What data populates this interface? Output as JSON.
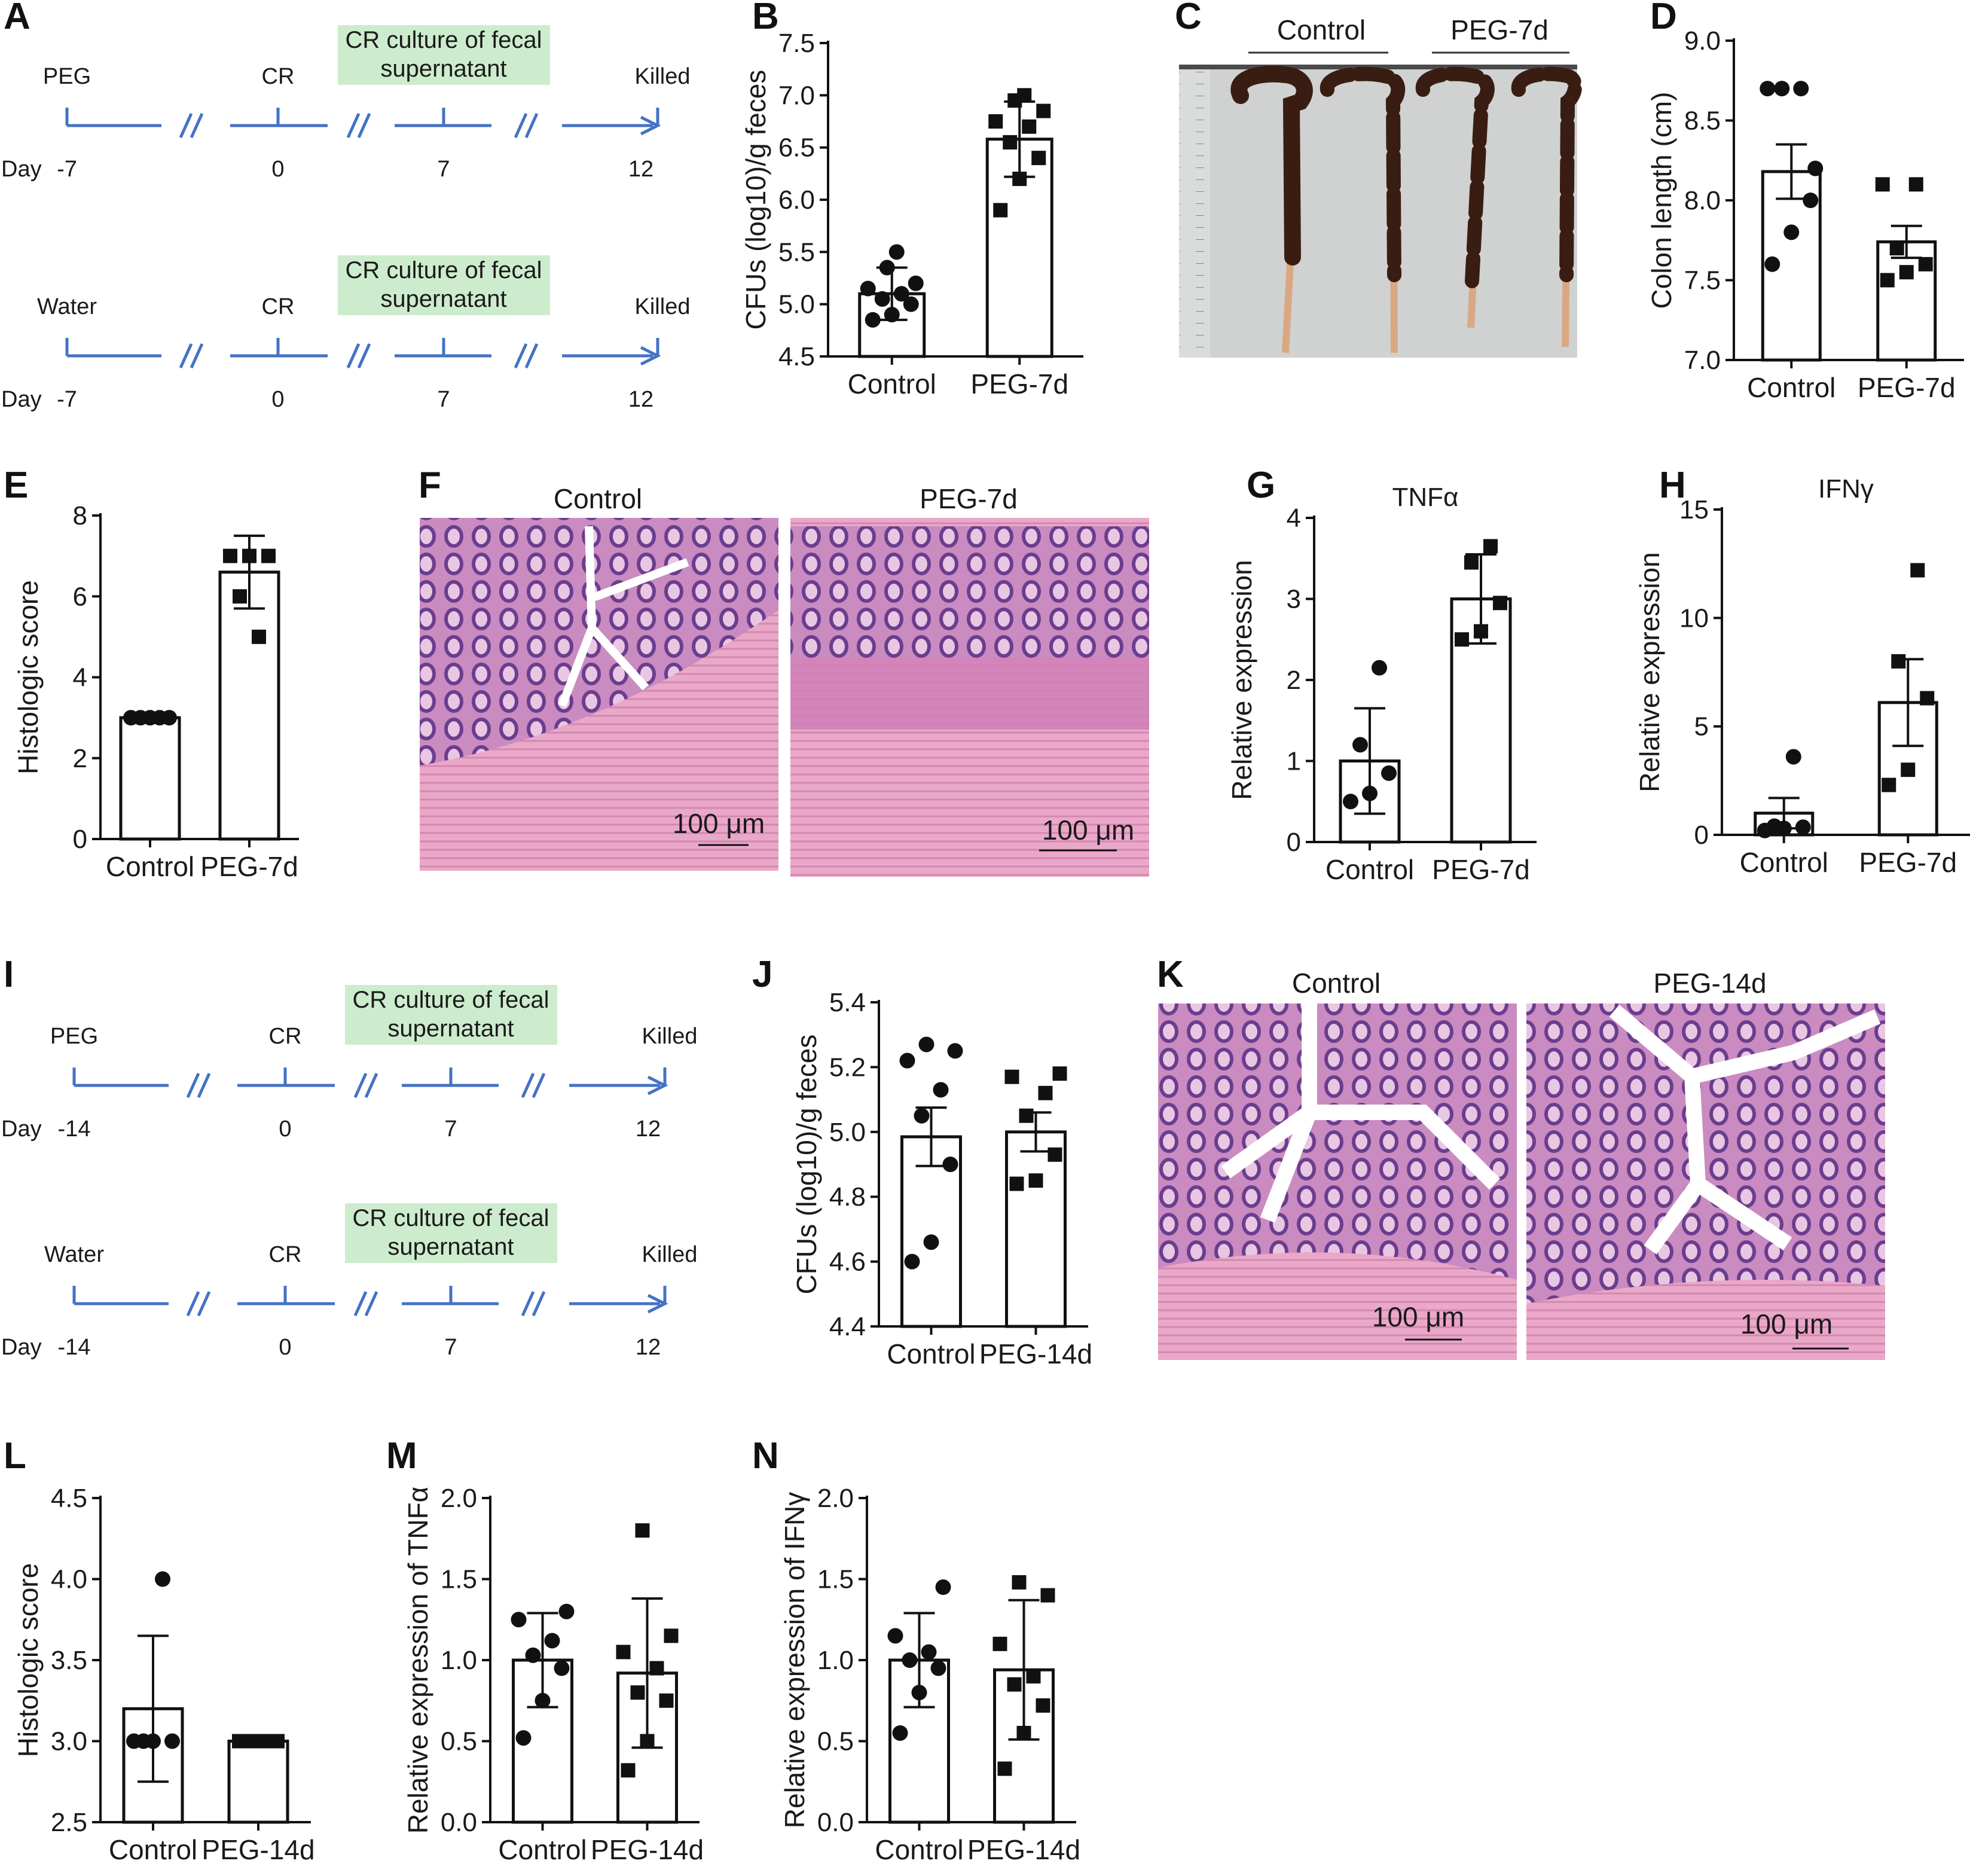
{
  "panel_letters": [
    "A",
    "B",
    "C",
    "D",
    "E",
    "F",
    "G",
    "H",
    "I",
    "J",
    "K",
    "L",
    "M",
    "N"
  ],
  "timelines": {
    "A_top": {
      "group": "PEG",
      "cr": "CR",
      "box": [
        "CR culture of fecal",
        "supernatant"
      ],
      "end": "Killed",
      "day_label": "Day",
      "days": [
        "-7",
        "0",
        "7",
        "12"
      ]
    },
    "A_bottom": {
      "group": "Water",
      "cr": "CR",
      "box": [
        "CR culture of fecal",
        "supernatant"
      ],
      "end": "Killed",
      "day_label": "Day",
      "days": [
        "-7",
        "0",
        "7",
        "12"
      ]
    },
    "I_top": {
      "group": "PEG",
      "cr": "CR",
      "box": [
        "CR culture of fecal",
        "supernatant"
      ],
      "end": "Killed",
      "day_label": "Day",
      "days": [
        "-14",
        "0",
        "7",
        "12"
      ]
    },
    "I_bottom": {
      "group": "Water",
      "cr": "CR",
      "box": [
        "CR culture of fecal",
        "supernatant"
      ],
      "end": "Killed",
      "day_label": "Day",
      "days": [
        "-14",
        "0",
        "7",
        "12"
      ]
    }
  },
  "images": {
    "C": {
      "labels": [
        "Control",
        "PEG-7d"
      ]
    },
    "F": {
      "labels": [
        "Control",
        "PEG-7d"
      ],
      "scale": "100 μm"
    },
    "K": {
      "labels": [
        "Control",
        "PEG-14d"
      ],
      "scale": "100 μm"
    }
  },
  "colors": {
    "timeline": "#4472c4",
    "box": "#cdeccd",
    "bar_edge": "#111111",
    "point": "#111111",
    "he_purple": "#8a4fa6",
    "he_pink": "#e6a3c6"
  },
  "chart_data": [
    {
      "id": "B",
      "type": "bar",
      "title": "",
      "ylabel": "CFUs (log10)/g feces",
      "ylim": [
        4.5,
        7.5
      ],
      "yticks": [
        "4.5",
        "5.0",
        "5.5",
        "6.0",
        "6.5",
        "7.0",
        "7.5"
      ],
      "categories": [
        "Control",
        "PEG-7d"
      ],
      "values": [
        5.1,
        6.58
      ],
      "errors": [
        0.25,
        0.36
      ],
      "points": [
        [
          4.85,
          4.9,
          5.0,
          5.05,
          5.1,
          5.15,
          5.2,
          5.35,
          5.5
        ],
        [
          5.9,
          6.2,
          6.4,
          6.55,
          6.7,
          6.75,
          6.85,
          6.95,
          7.0
        ]
      ]
    },
    {
      "id": "D",
      "type": "bar",
      "title": "",
      "ylabel": "Colon length (cm)",
      "ylim": [
        7.0,
        9.0
      ],
      "yticks": [
        "7.0",
        "7.5",
        "8.0",
        "8.5",
        "9.0"
      ],
      "categories": [
        "Control",
        "PEG-7d"
      ],
      "values": [
        8.18,
        7.74
      ],
      "errors": [
        0.17,
        0.1
      ],
      "points": [
        [
          7.6,
          7.8,
          8.0,
          8.7,
          8.7,
          8.7,
          8.2
        ],
        [
          7.5,
          7.55,
          7.6,
          7.7,
          8.1,
          8.1
        ]
      ]
    },
    {
      "id": "E",
      "type": "bar",
      "title": "",
      "ylabel": "Histologic score",
      "ylim": [
        0,
        8
      ],
      "yticks": [
        "0",
        "2",
        "4",
        "6",
        "8"
      ],
      "categories": [
        "Control",
        "PEG-7d"
      ],
      "values": [
        3.0,
        6.6
      ],
      "errors": [
        0,
        0.9
      ],
      "points": [
        [
          3,
          3,
          3,
          3,
          3
        ],
        [
          7,
          7,
          7,
          6,
          5
        ]
      ]
    },
    {
      "id": "G",
      "type": "bar",
      "title": "TNFα",
      "ylabel": "Relative expression",
      "ylim": [
        0,
        4
      ],
      "yticks": [
        "0",
        "1",
        "2",
        "3",
        "4"
      ],
      "categories": [
        "Control",
        "PEG-7d"
      ],
      "values": [
        1.0,
        3.0
      ],
      "errors": [
        0.65,
        0.55
      ],
      "points": [
        [
          0.5,
          0.6,
          0.85,
          1.2,
          2.15
        ],
        [
          2.5,
          2.6,
          2.95,
          3.45,
          3.65
        ]
      ]
    },
    {
      "id": "H",
      "type": "bar",
      "title": "IFNγ",
      "ylabel": "Relative expression",
      "ylim": [
        0,
        15
      ],
      "yticks": [
        "0",
        "5",
        "10",
        "15"
      ],
      "categories": [
        "Control",
        "PEG-7d"
      ],
      "values": [
        1.0,
        6.1
      ],
      "errors": [
        0.7,
        2.0
      ],
      "points": [
        [
          0.2,
          0.3,
          0.35,
          0.4,
          3.6
        ],
        [
          2.3,
          3.0,
          6.3,
          8.0,
          12.2
        ]
      ]
    },
    {
      "id": "J",
      "type": "bar",
      "title": "",
      "ylabel": "CFUs (log10)/g feces",
      "ylim": [
        4.4,
        5.4
      ],
      "yticks": [
        "4.4",
        "4.6",
        "4.8",
        "5.0",
        "5.2",
        "5.4"
      ],
      "categories": [
        "Control",
        "PEG-14d"
      ],
      "values": [
        4.985,
        5.0
      ],
      "errors": [
        0.09,
        0.06
      ],
      "points": [
        [
          4.6,
          4.66,
          4.9,
          5.05,
          5.13,
          5.22,
          5.25,
          5.27
        ],
        [
          4.84,
          4.85,
          4.93,
          5.05,
          5.12,
          5.17,
          5.18
        ]
      ]
    },
    {
      "id": "L",
      "type": "bar",
      "title": "",
      "ylabel": "Histologic score",
      "ylim": [
        2.5,
        4.5
      ],
      "yticks": [
        "2.5",
        "3.0",
        "3.5",
        "4.0",
        "4.5"
      ],
      "categories": [
        "Control",
        "PEG-14d"
      ],
      "values": [
        3.2,
        3.0
      ],
      "errors": [
        0.45,
        0
      ],
      "points": [
        [
          3,
          3,
          3,
          3,
          4
        ],
        [
          3,
          3,
          3,
          3,
          3
        ]
      ]
    },
    {
      "id": "M",
      "type": "bar",
      "title": "",
      "ylabel": "Relative expression of TNFα",
      "ylim": [
        0,
        2.0
      ],
      "yticks": [
        "0.0",
        "0.5",
        "1.0",
        "1.5",
        "2.0"
      ],
      "categories": [
        "Control",
        "PEG-14d"
      ],
      "values": [
        1.0,
        0.92
      ],
      "errors": [
        0.29,
        0.46
      ],
      "points": [
        [
          0.52,
          0.75,
          0.95,
          1.03,
          1.12,
          1.25,
          1.3
        ],
        [
          0.32,
          0.5,
          0.75,
          0.8,
          0.95,
          1.05,
          1.15,
          1.8
        ]
      ]
    },
    {
      "id": "N",
      "type": "bar",
      "title": "",
      "ylabel": "Relative expression of IFNγ",
      "ylim": [
        0,
        2.0
      ],
      "yticks": [
        "0.0",
        "0.5",
        "1.0",
        "1.5",
        "2.0"
      ],
      "categories": [
        "Control",
        "PEG-14d"
      ],
      "values": [
        1.0,
        0.94
      ],
      "errors": [
        0.29,
        0.43
      ],
      "points": [
        [
          0.55,
          0.8,
          0.95,
          1.0,
          1.05,
          1.15,
          1.45
        ],
        [
          0.33,
          0.55,
          0.72,
          0.85,
          0.9,
          1.1,
          1.4,
          1.48
        ]
      ]
    }
  ]
}
